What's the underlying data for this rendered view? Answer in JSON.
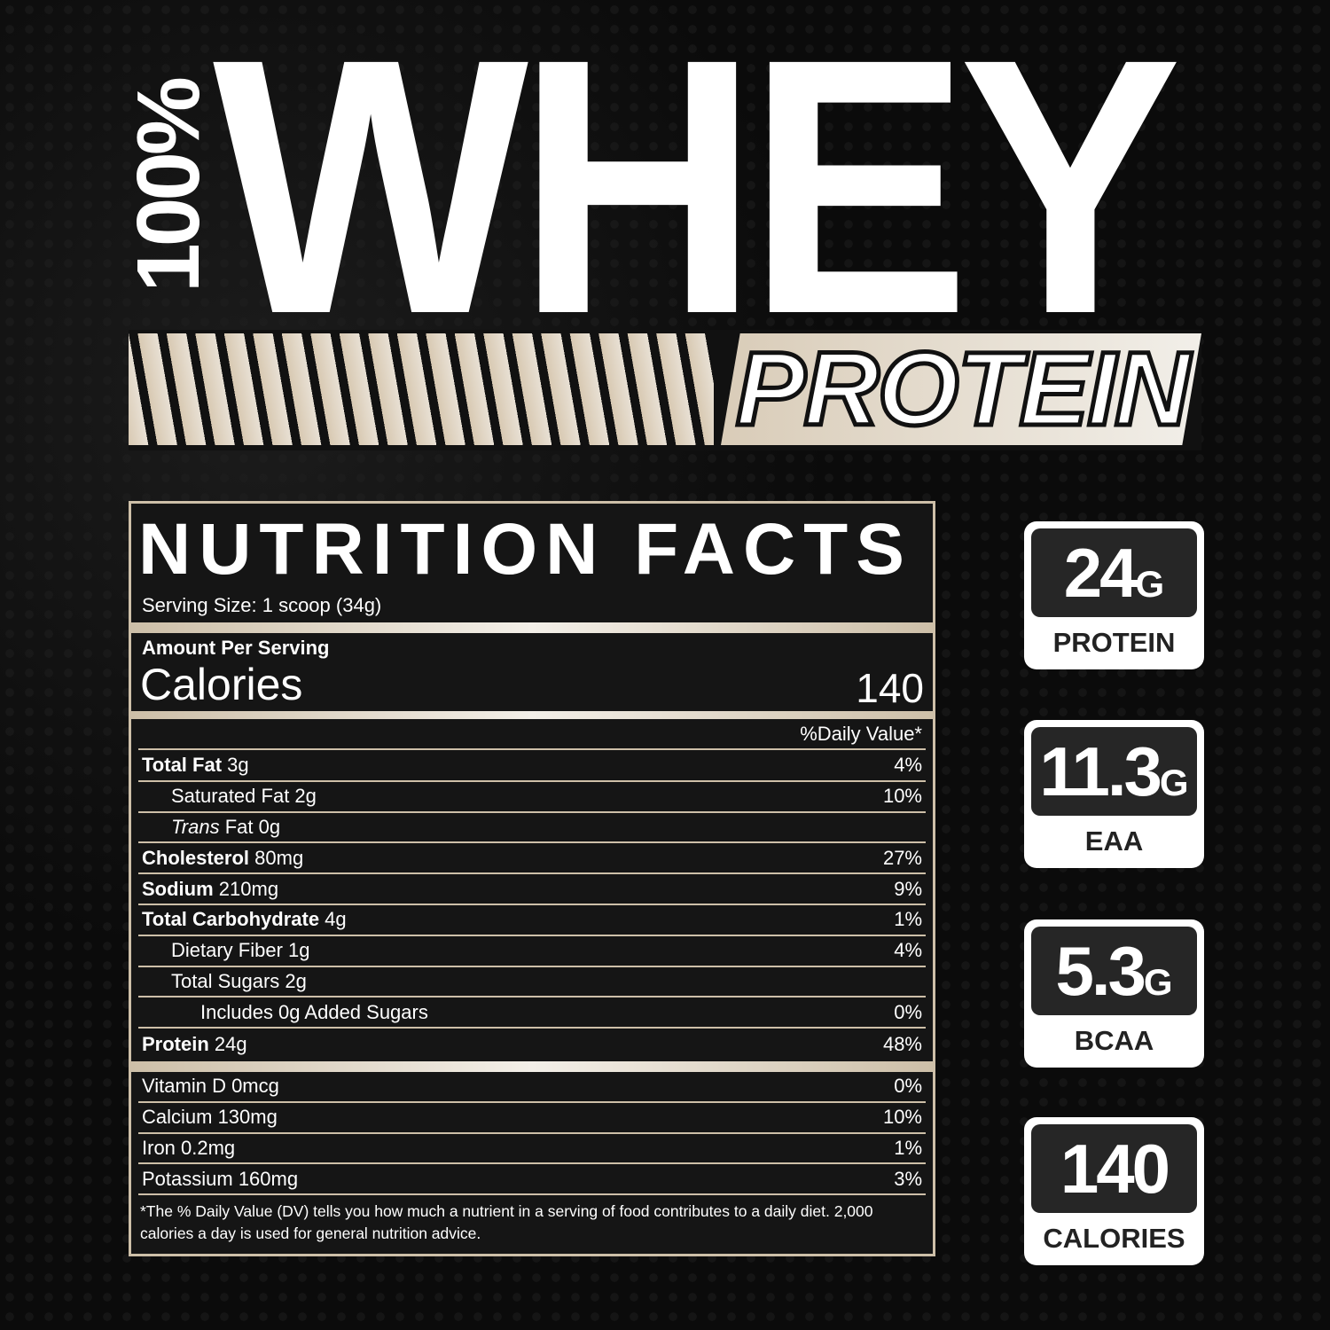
{
  "header": {
    "percent": "100%",
    "title": "WHEY",
    "subtitle": "PROTEIN"
  },
  "nutrition": {
    "title": "NUTRITION FACTS",
    "serving_size": "Serving Size: 1 scoop (34g)",
    "amount_per_serving": "Amount Per Serving",
    "calories_label": "Calories",
    "calories_value": "140",
    "dv_header": "%Daily Value*",
    "rows": [
      {
        "bold": "Total Fat",
        "name": " 3g",
        "dv": "4%",
        "indent": 0
      },
      {
        "bold": "",
        "name": "Saturated Fat 2g",
        "dv": "10%",
        "indent": 1
      },
      {
        "bold": "",
        "italic": "Trans",
        "name": " Fat 0g",
        "dv": "",
        "indent": 1
      },
      {
        "bold": "Cholesterol",
        "name": " 80mg",
        "dv": "27%",
        "indent": 0
      },
      {
        "bold": "Sodium",
        "name": " 210mg",
        "dv": "9%",
        "indent": 0
      },
      {
        "bold": "Total Carbohydrate",
        "name": " 4g",
        "dv": "1%",
        "indent": 0
      },
      {
        "bold": "",
        "name": "Dietary Fiber 1g",
        "dv": "4%",
        "indent": 1
      },
      {
        "bold": "",
        "name": "Total Sugars 2g",
        "dv": "",
        "indent": 1
      },
      {
        "bold": "",
        "name": "Includes 0g Added Sugars",
        "dv": "0%",
        "indent": 2
      },
      {
        "bold": "Protein",
        "name": " 24g",
        "dv": "48%",
        "indent": 0
      }
    ],
    "vitamins": [
      {
        "name": "Vitamin D 0mcg",
        "dv": "0%"
      },
      {
        "name": "Calcium 130mg",
        "dv": "10%"
      },
      {
        "name": "Iron 0.2mg",
        "dv": "1%"
      },
      {
        "name": "Potassium 160mg",
        "dv": "3%"
      }
    ],
    "footnote": "*The % Daily Value (DV) tells you how much a nutrient in a serving of food contributes to a daily diet. 2,000 calories a day is used for general nutrition advice."
  },
  "badges": [
    {
      "value": "24",
      "unit": "G",
      "label": "PROTEIN"
    },
    {
      "value": "11.3",
      "unit": "G",
      "label": "EAA"
    },
    {
      "value": "5.3",
      "unit": "G",
      "label": "BCAA"
    },
    {
      "value": "140",
      "unit": "",
      "label": "CALORIES"
    }
  ]
}
